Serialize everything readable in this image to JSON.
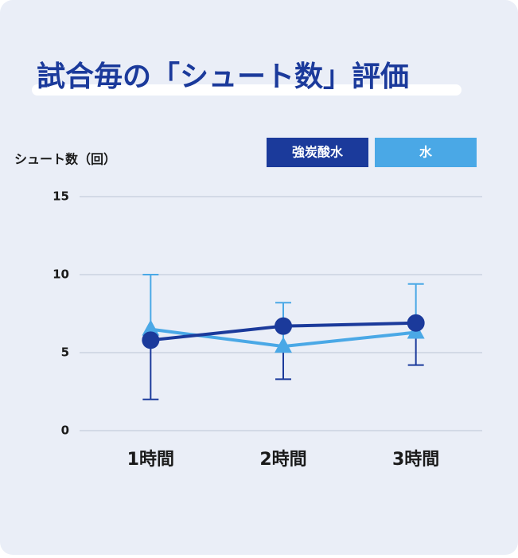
{
  "chart_data": {
    "type": "line",
    "title": "試合毎の「シュート数」評価",
    "y_label": "シュート数（回）",
    "categories": [
      "1時間",
      "2時間",
      "3時間"
    ],
    "ylim": [
      0,
      15
    ],
    "yticks": [
      0,
      5,
      10,
      15
    ],
    "grid": true,
    "series": [
      {
        "name": "強炭酸水",
        "color": "#1b3a9b",
        "marker": "circle",
        "error_direction": "down",
        "values": [
          5.8,
          6.7,
          6.9
        ],
        "errors": [
          3.8,
          3.4,
          2.7
        ]
      },
      {
        "name": "水",
        "color": "#4aa8e6",
        "marker": "triangle",
        "error_direction": "up",
        "values": [
          6.5,
          5.4,
          6.3
        ],
        "errors": [
          3.5,
          2.8,
          3.1
        ]
      }
    ]
  }
}
